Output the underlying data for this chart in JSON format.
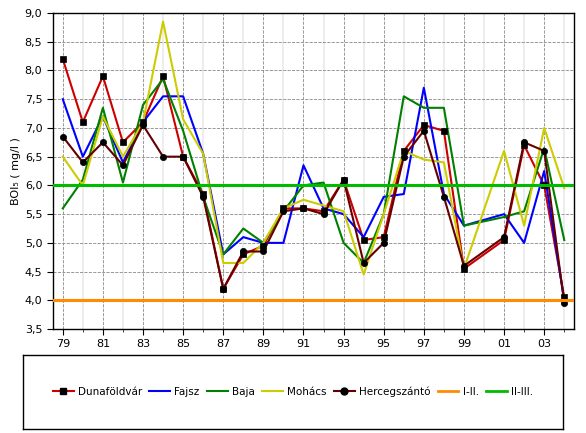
{
  "x_numeric": [
    79,
    80,
    81,
    82,
    83,
    84,
    85,
    86,
    87,
    88,
    89,
    90,
    91,
    92,
    93,
    94,
    95,
    96,
    97,
    98,
    99,
    101,
    102,
    103,
    104
  ],
  "dunaföldvár": [
    8.2,
    7.1,
    7.9,
    6.75,
    7.1,
    7.9,
    6.5,
    5.85,
    4.2,
    4.8,
    4.95,
    5.6,
    5.6,
    5.55,
    6.1,
    5.05,
    5.1,
    6.6,
    7.05,
    6.95,
    4.55,
    5.05,
    6.7,
    6.0,
    4.05
  ],
  "fajsz": [
    7.5,
    6.5,
    7.2,
    6.4,
    7.1,
    7.55,
    7.55,
    6.55,
    4.8,
    5.1,
    5.0,
    5.0,
    6.35,
    5.6,
    5.5,
    5.1,
    5.8,
    5.85,
    7.7,
    5.85,
    5.3,
    5.5,
    5.0,
    6.25,
    4.0
  ],
  "baja": [
    5.6,
    6.1,
    7.35,
    6.05,
    7.4,
    7.85,
    6.95,
    5.8,
    4.8,
    5.25,
    5.0,
    5.55,
    6.0,
    6.05,
    5.0,
    4.65,
    5.5,
    7.55,
    7.35,
    7.35,
    5.3,
    5.45,
    5.55,
    6.65,
    5.05
  ],
  "mohács": [
    6.5,
    6.0,
    7.2,
    6.5,
    7.1,
    8.85,
    7.15,
    6.55,
    4.65,
    4.65,
    5.0,
    5.6,
    5.75,
    5.65,
    5.55,
    4.45,
    5.5,
    6.6,
    6.45,
    6.4,
    4.55,
    6.6,
    5.3,
    7.0,
    5.95
  ],
  "hercegszántó": [
    6.85,
    6.4,
    6.75,
    6.35,
    7.05,
    6.5,
    6.5,
    5.8,
    4.2,
    4.85,
    4.85,
    5.55,
    5.6,
    5.5,
    6.1,
    4.65,
    5.0,
    6.5,
    6.95,
    5.8,
    4.6,
    5.1,
    6.75,
    6.6,
    3.95
  ],
  "I_II": 4.0,
  "II_III": 6.0,
  "ylabel": "BOI₅ ( mg/l )",
  "ylim": [
    3.5,
    9.0
  ],
  "ytick_vals": [
    3.5,
    4.0,
    4.5,
    5.0,
    5.5,
    6.0,
    6.5,
    7.0,
    7.5,
    8.0,
    8.5,
    9.0
  ],
  "ytick_labels": [
    "3,5",
    "4,0",
    "4,5",
    "5,0",
    "5,5",
    "6,0",
    "6,5",
    "7,0",
    "7,5",
    "8,0",
    "8,5",
    "9,0"
  ],
  "xtick_vals": [
    79,
    81,
    83,
    85,
    87,
    89,
    91,
    93,
    95,
    97,
    99,
    101,
    103
  ],
  "xtick_labels": [
    "79",
    "81",
    "83",
    "85",
    "87",
    "89",
    "91",
    "93",
    "95",
    "97",
    "99",
    "01",
    "03"
  ],
  "colors": {
    "dunaföldvár": "#cc0000",
    "fajsz": "#0000ff",
    "baja": "#008000",
    "mohács": "#cccc00",
    "hercegszántó": "#660000",
    "I_II": "#ff8c00",
    "II_III": "#00bb00"
  }
}
